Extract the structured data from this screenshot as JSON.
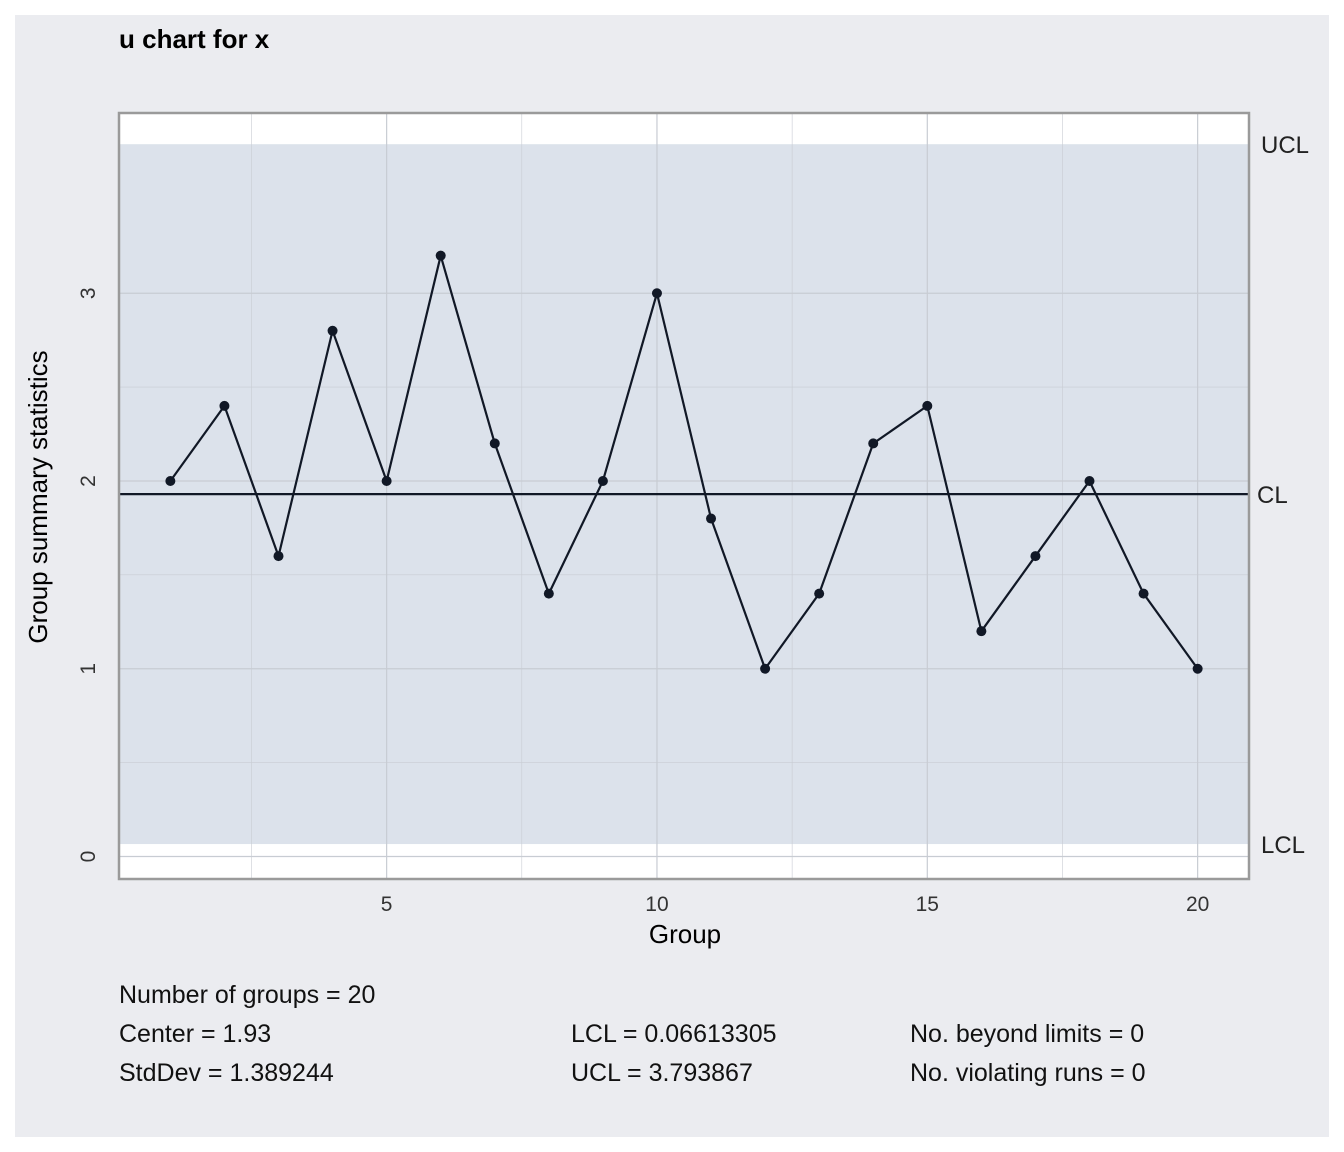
{
  "chart_data": {
    "type": "line",
    "title": "u chart for x",
    "xlabel": "Group",
    "ylabel": "Group summary statistics",
    "x": [
      1,
      2,
      3,
      4,
      5,
      6,
      7,
      8,
      9,
      10,
      11,
      12,
      13,
      14,
      15,
      16,
      17,
      18,
      19,
      20
    ],
    "series": [
      {
        "values": [
          2.0,
          2.4,
          1.6,
          2.8,
          2.0,
          3.2,
          2.2,
          1.4,
          2.0,
          3.0,
          1.8,
          1.0,
          1.4,
          2.2,
          2.4,
          1.2,
          1.6,
          2.0,
          1.4,
          1.0
        ]
      }
    ],
    "xlim": [
      0.05,
      20.95
    ],
    "ylim": [
      -0.12,
      3.96
    ],
    "xticks": [
      5,
      10,
      15,
      20
    ],
    "yticks": [
      0,
      1,
      2,
      3
    ],
    "center": 1.93,
    "lcl": 0.06613305,
    "ucl": 3.793867,
    "limit_labels": {
      "ucl": "UCL",
      "cl": "CL",
      "lcl": "LCL"
    },
    "grid": true
  },
  "stats": {
    "groups": "Number of groups = 20",
    "center": "Center = 1.93",
    "stddev": "StdDev = 1.389244",
    "lcl": "LCL = 0.06613305",
    "ucl": "UCL = 3.793867",
    "beyond": "No. beyond limits = 0",
    "runs": "No. violating runs = 0"
  },
  "colors": {
    "background": "#ebecf0",
    "plot_area": "#ffffff",
    "control_band": "#dce2eb",
    "line": "#111826",
    "grid": "#c8ccd3",
    "border": "#9a9a9a"
  }
}
